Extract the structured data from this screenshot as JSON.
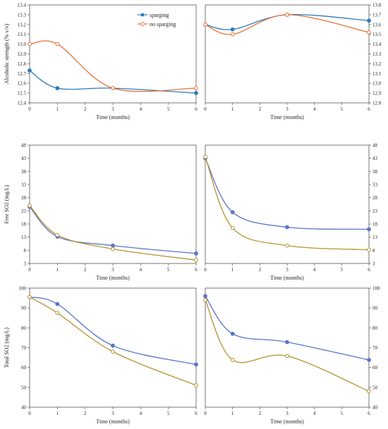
{
  "legend": {
    "entries": [
      {
        "label": "sparging",
        "series": "sparging"
      },
      {
        "label": "no sparging",
        "series": "no_sparging"
      }
    ]
  },
  "colors": {
    "sparging": "#2b7bba",
    "no_sparging": "#e8703a",
    "sparging_rows_2_3": "#5b74c8",
    "no_sparging_rows_2_3": "#b5922e",
    "frame": "#555555"
  },
  "chart_data": [
    {
      "id": "alcohol-left",
      "type": "line",
      "xlabel": "Time (months)",
      "ylabel": "Alcoholic strength (% v/v)",
      "xlim": [
        0,
        6
      ],
      "ylim": [
        12.4,
        13.4
      ],
      "xticks": [
        "0",
        "1",
        "2",
        "3",
        "4",
        "5",
        "6"
      ],
      "yticks": [
        "12.4",
        "12.5",
        "12.6",
        "12.7",
        "12.8",
        "12.9",
        "13.0",
        "13.1",
        "13.2",
        "13.3",
        "13.4"
      ],
      "y_axis_side": "left",
      "x": [
        0,
        1,
        3,
        6
      ],
      "series": [
        {
          "name": "sparging",
          "key": "sparging",
          "values": [
            12.73,
            12.55,
            12.55,
            12.5
          ]
        },
        {
          "name": "no sparging",
          "key": "no_sparging",
          "values": [
            13.0,
            13.0,
            12.55,
            12.55
          ]
        }
      ]
    },
    {
      "id": "alcohol-right",
      "type": "line",
      "xlabel": "Time (months)",
      "ylabel": "",
      "xlim": [
        0,
        6
      ],
      "ylim": [
        12.8,
        13.8
      ],
      "xticks": [
        "0",
        "1",
        "2",
        "3",
        "4",
        "5",
        "6"
      ],
      "yticks": [
        "12.8",
        "12.9",
        "13.0",
        "13.1",
        "13.2",
        "13.3",
        "13.4",
        "13.5",
        "13.6",
        "13.7",
        "13.8"
      ],
      "y_axis_side": "right",
      "x": [
        0,
        1,
        3,
        6
      ],
      "series": [
        {
          "name": "sparging",
          "key": "sparging",
          "values": [
            13.6,
            13.55,
            13.7,
            13.64
          ]
        },
        {
          "name": "no sparging",
          "key": "no_sparging",
          "values": [
            13.6,
            13.5,
            13.7,
            13.52
          ]
        }
      ]
    },
    {
      "id": "free-so2-left",
      "type": "line",
      "xlabel": "Time (months)",
      "ylabel": "Free SO2 (mg/L)",
      "xlim": [
        0,
        6
      ],
      "ylim": [
        3,
        48
      ],
      "xticks": [
        "0",
        "1",
        "2",
        "3",
        "4",
        "5",
        "6"
      ],
      "yticks": [
        "3",
        "8",
        "13",
        "18",
        "23",
        "28",
        "33",
        "38",
        "43",
        "48"
      ],
      "y_axis_side": "left",
      "x": [
        0,
        1,
        3,
        6
      ],
      "series": [
        {
          "name": "sparging",
          "key": "sparging_rows_2_3",
          "values": [
            24.5,
            13.2,
            9.8,
            6.8
          ]
        },
        {
          "name": "no sparging",
          "key": "no_sparging_rows_2_3",
          "values": [
            25.0,
            13.8,
            8.5,
            4.3
          ]
        }
      ]
    },
    {
      "id": "free-so2-right",
      "type": "line",
      "xlabel": "Time (months)",
      "ylabel": "",
      "xlim": [
        0,
        6
      ],
      "ylim": [
        3,
        48
      ],
      "xticks": [
        "0",
        "1",
        "2",
        "3",
        "4",
        "5",
        "6"
      ],
      "yticks": [
        "3",
        "8",
        "13",
        "18",
        "23",
        "28",
        "33",
        "38",
        "43",
        "48"
      ],
      "y_axis_side": "right",
      "x": [
        0,
        1,
        3,
        6
      ],
      "series": [
        {
          "name": "sparging",
          "key": "sparging_rows_2_3",
          "values": [
            43.0,
            22.5,
            16.8,
            16.0
          ]
        },
        {
          "name": "no sparging",
          "key": "no_sparging_rows_2_3",
          "values": [
            43.5,
            16.5,
            9.8,
            8.2
          ]
        }
      ]
    },
    {
      "id": "total-so2-left",
      "type": "line",
      "xlabel": "Time (months)",
      "ylabel": "Total SO2 (mg/L)",
      "xlim": [
        0,
        6
      ],
      "ylim": [
        40,
        100
      ],
      "xticks": [
        "0",
        "1",
        "2",
        "3",
        "4",
        "5",
        "6"
      ],
      "yticks": [
        "40",
        "50",
        "60",
        "70",
        "80",
        "90",
        "100"
      ],
      "y_axis_side": "left",
      "x": [
        0,
        1,
        3,
        6
      ],
      "series": [
        {
          "name": "sparging",
          "key": "sparging_rows_2_3",
          "values": [
            95.5,
            92.0,
            71.0,
            61.5
          ]
        },
        {
          "name": "no sparging",
          "key": "no_sparging_rows_2_3",
          "values": [
            95.5,
            87.5,
            68.0,
            51.0
          ]
        }
      ]
    },
    {
      "id": "total-so2-right",
      "type": "line",
      "xlabel": "Time (months)",
      "ylabel": "",
      "xlim": [
        0,
        6
      ],
      "ylim": [
        40,
        100
      ],
      "xticks": [
        "0",
        "1",
        "2",
        "3",
        "4",
        "5",
        "6"
      ],
      "yticks": [
        "40",
        "50",
        "60",
        "70",
        "80",
        "90",
        "100"
      ],
      "y_axis_side": "right",
      "x": [
        0,
        1,
        3,
        6
      ],
      "series": [
        {
          "name": "sparging",
          "key": "sparging_rows_2_3",
          "values": [
            96.0,
            77.0,
            72.8,
            63.8
          ]
        },
        {
          "name": "no sparging",
          "key": "no_sparging_rows_2_3",
          "values": [
            94.0,
            63.8,
            65.8,
            48.0
          ]
        }
      ]
    }
  ]
}
